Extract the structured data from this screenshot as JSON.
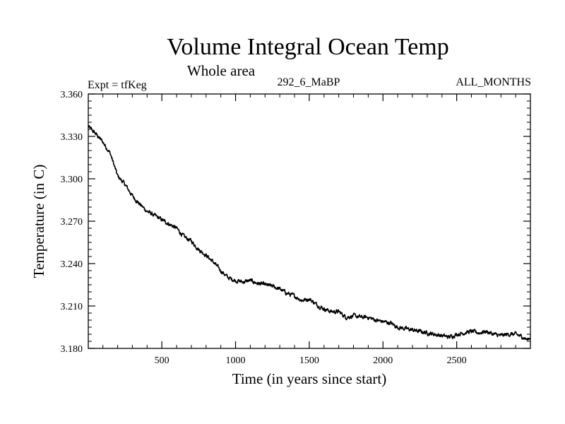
{
  "chart_data": {
    "type": "line",
    "title": "Volume Integral Ocean Temp",
    "subtitle": "Whole area",
    "left_label": "Expt = tfKeg",
    "center_label": "292_6_MaBP",
    "right_label": "ALL_MONTHS",
    "xlabel": "Time (in years since start)",
    "ylabel": "Temperature (in C)",
    "xlim": [
      1,
      3000
    ],
    "ylim": [
      3.18,
      3.36
    ],
    "x_ticks": [
      500,
      1000,
      1500,
      2000,
      2500
    ],
    "y_ticks": [
      "3.180",
      "3.210",
      "3.240",
      "3.270",
      "3.300",
      "3.330",
      "3.360"
    ],
    "grid": false,
    "line_color": "#000000",
    "series": [
      {
        "x": [
          1,
          50,
          100,
          150,
          175,
          200,
          250,
          300,
          350,
          400,
          450,
          500,
          550,
          600,
          650,
          700,
          750,
          800,
          850,
          900,
          950,
          1000,
          1050,
          1100,
          1150,
          1200,
          1250,
          1300,
          1350,
          1400,
          1450,
          1500,
          1550,
          1600,
          1650,
          1700,
          1750,
          1800,
          1850,
          1900,
          1950,
          2000,
          2050,
          2100,
          2150,
          2200,
          2250,
          2300,
          2350,
          2400,
          2450,
          2500,
          2550,
          2600,
          2650,
          2700,
          2750,
          2800,
          2850,
          2900,
          2950,
          2980,
          3000
        ],
        "y": [
          3.337,
          3.332,
          3.326,
          3.318,
          3.31,
          3.302,
          3.296,
          3.288,
          3.282,
          3.277,
          3.274,
          3.271,
          3.268,
          3.265,
          3.259,
          3.256,
          3.25,
          3.246,
          3.241,
          3.235,
          3.23,
          3.228,
          3.227,
          3.228,
          3.226,
          3.225,
          3.224,
          3.222,
          3.219,
          3.217,
          3.214,
          3.215,
          3.211,
          3.208,
          3.206,
          3.206,
          3.202,
          3.203,
          3.202,
          3.202,
          3.2,
          3.199,
          3.198,
          3.195,
          3.194,
          3.193,
          3.192,
          3.191,
          3.19,
          3.189,
          3.188,
          3.19,
          3.191,
          3.192,
          3.191,
          3.192,
          3.19,
          3.189,
          3.19,
          3.19,
          3.188,
          3.186,
          3.188
        ]
      }
    ]
  }
}
